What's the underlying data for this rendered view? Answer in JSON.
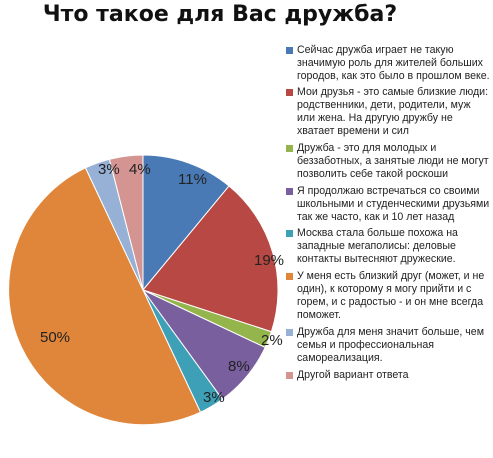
{
  "chart_data": {
    "type": "pie",
    "title": "Что такое для Вас дружба?",
    "categories": [
      "Сейчас дружба играет не такую значимую роль для жителей больших городов, как это было в прошлом веке.",
      "Мои друзья - это самые близкие люди: родственники, дети, родители, муж или жена. На другую дружбу не хватает времени и сил",
      "Дружба - это для молодых и беззаботных, а занятые люди не могут позволить себе такой роскоши",
      "Я продолжаю встречаться со своими школьными и студенческими друзьями так же часто, как и 10 лет назад",
      "Москва стала больше похожа на западные мегаполисы: деловые контакты вытесняют дружеские.",
      "У меня есть близкий друг (может, и не один), к которому я могу прийти и с горем, и с радостью - и он мне всегда поможет.",
      "Дружба для меня значит больше, чем семья и профессиональная самореализация.",
      "Другой вариант ответа"
    ],
    "values": [
      11,
      19,
      2,
      8,
      3,
      50,
      3,
      4
    ],
    "data_labels": [
      "11%",
      "19%",
      "2%",
      "8%",
      "3%",
      "50%",
      "3%",
      "4%"
    ],
    "colors": [
      "#4a7ab5",
      "#b84843",
      "#94b54c",
      "#7a5f9e",
      "#3ea0b6",
      "#e0863a",
      "#97b0d6",
      "#d49592"
    ],
    "legend_position": "right",
    "start_angle_deg": 0,
    "direction": "clockwise"
  }
}
